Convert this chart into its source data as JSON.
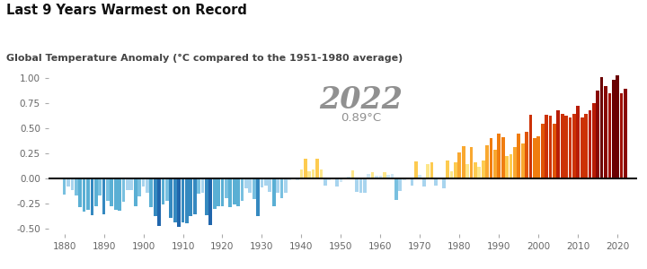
{
  "title": "Last 9 Years Warmest on Record",
  "subtitle": "Global Temperature Anomaly (°C compared to the 1951-1980 average)",
  "annotation_year": "2022",
  "annotation_temp": "0.89°C",
  "ylim": [
    -0.55,
    1.05
  ],
  "yticks": [
    -0.5,
    -0.25,
    0.0,
    0.25,
    0.5,
    0.75,
    1.0
  ],
  "xticks": [
    1880,
    1890,
    1900,
    1910,
    1920,
    1930,
    1940,
    1950,
    1960,
    1970,
    1980,
    1990,
    2000,
    2010,
    2020
  ],
  "years": [
    1880,
    1881,
    1882,
    1883,
    1884,
    1885,
    1886,
    1887,
    1888,
    1889,
    1890,
    1891,
    1892,
    1893,
    1894,
    1895,
    1896,
    1897,
    1898,
    1899,
    1900,
    1901,
    1902,
    1903,
    1904,
    1905,
    1906,
    1907,
    1908,
    1909,
    1910,
    1911,
    1912,
    1913,
    1914,
    1915,
    1916,
    1917,
    1918,
    1919,
    1920,
    1921,
    1922,
    1923,
    1924,
    1925,
    1926,
    1927,
    1928,
    1929,
    1930,
    1931,
    1932,
    1933,
    1934,
    1935,
    1936,
    1937,
    1938,
    1939,
    1940,
    1941,
    1942,
    1943,
    1944,
    1945,
    1946,
    1947,
    1948,
    1949,
    1950,
    1951,
    1952,
    1953,
    1954,
    1955,
    1956,
    1957,
    1958,
    1959,
    1960,
    1961,
    1962,
    1963,
    1964,
    1965,
    1966,
    1967,
    1968,
    1969,
    1970,
    1971,
    1972,
    1973,
    1974,
    1975,
    1976,
    1977,
    1978,
    1979,
    1980,
    1981,
    1982,
    1983,
    1984,
    1985,
    1986,
    1987,
    1988,
    1989,
    1990,
    1991,
    1992,
    1993,
    1994,
    1995,
    1996,
    1997,
    1998,
    1999,
    2000,
    2001,
    2002,
    2003,
    2004,
    2005,
    2006,
    2007,
    2008,
    2009,
    2010,
    2011,
    2012,
    2013,
    2014,
    2015,
    2016,
    2017,
    2018,
    2019,
    2020,
    2021,
    2022
  ],
  "anomalies": [
    -0.16,
    -0.08,
    -0.11,
    -0.17,
    -0.28,
    -0.33,
    -0.31,
    -0.36,
    -0.27,
    -0.17,
    -0.35,
    -0.22,
    -0.27,
    -0.31,
    -0.32,
    -0.23,
    -0.11,
    -0.11,
    -0.27,
    -0.18,
    -0.08,
    -0.14,
    -0.28,
    -0.37,
    -0.47,
    -0.26,
    -0.22,
    -0.39,
    -0.43,
    -0.48,
    -0.43,
    -0.44,
    -0.37,
    -0.35,
    -0.15,
    -0.14,
    -0.36,
    -0.46,
    -0.3,
    -0.27,
    -0.27,
    -0.19,
    -0.28,
    -0.26,
    -0.27,
    -0.22,
    -0.1,
    -0.14,
    -0.2,
    -0.37,
    -0.09,
    -0.07,
    -0.13,
    -0.27,
    -0.14,
    -0.19,
    -0.14,
    -0.02,
    -0.0,
    -0.02,
    0.09,
    0.2,
    0.07,
    0.09,
    0.2,
    0.09,
    -0.07,
    -0.02,
    -0.01,
    -0.08,
    -0.03,
    0.01,
    0.02,
    0.08,
    -0.13,
    -0.14,
    -0.14,
    0.05,
    0.06,
    0.03,
    0.03,
    0.06,
    0.04,
    0.05,
    -0.21,
    -0.12,
    -0.02,
    0.0,
    -0.07,
    0.17,
    0.04,
    -0.08,
    0.14,
    0.16,
    -0.07,
    -0.01,
    -0.1,
    0.18,
    0.07,
    0.16,
    0.26,
    0.32,
    0.14,
    0.31,
    0.16,
    0.12,
    0.18,
    0.33,
    0.4,
    0.29,
    0.45,
    0.41,
    0.22,
    0.24,
    0.31,
    0.45,
    0.35,
    0.46,
    0.63,
    0.4,
    0.42,
    0.54,
    0.63,
    0.62,
    0.54,
    0.68,
    0.64,
    0.62,
    0.61,
    0.64,
    0.72,
    0.61,
    0.64,
    0.68,
    0.75,
    0.87,
    1.01,
    0.92,
    0.85,
    0.98,
    1.02,
    0.85,
    0.89
  ],
  "bg_color": "#ffffff",
  "title_color": "#111111",
  "subtitle_color": "#444444",
  "annotation_color": "#909090",
  "tick_color": "#666666",
  "zeroline_color": "#111111"
}
